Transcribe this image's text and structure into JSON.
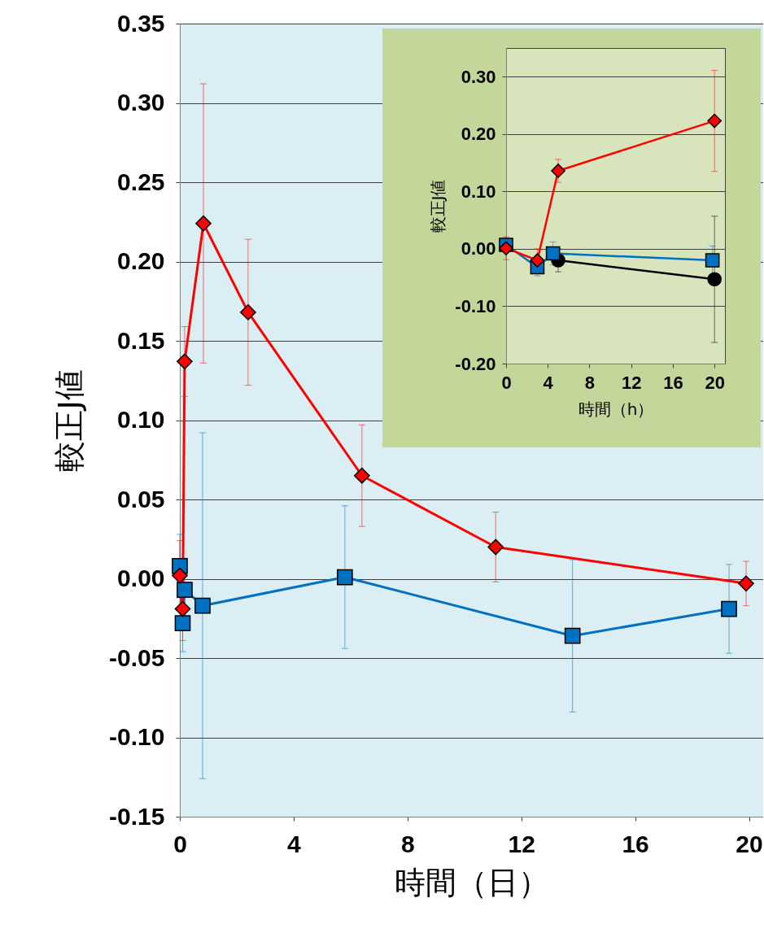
{
  "chart_data": [
    {
      "type": "line",
      "xlabel": "時間（日）",
      "ylabel": "較正J値",
      "grid": "y",
      "xlim": [
        0,
        20.5
      ],
      "xticks": [
        0,
        4,
        8,
        12,
        16,
        20
      ],
      "ylim": [
        -0.15,
        0.35
      ],
      "yticks": [
        {
          "value": -0.15,
          "label": "-0.15"
        },
        {
          "value": -0.1,
          "label": "-0.10"
        },
        {
          "value": -0.05,
          "label": "-0.05"
        },
        {
          "value": 0,
          "label": "0.00"
        },
        {
          "value": 0.05,
          "label": "0.05"
        },
        {
          "value": 0.1,
          "label": "0.10"
        },
        {
          "value": 0.15,
          "label": "0.15"
        },
        {
          "value": 0.2,
          "label": "0.20"
        },
        {
          "value": 0.25,
          "label": "0.25"
        },
        {
          "value": 0.3,
          "label": "0.30"
        },
        {
          "value": 0.35,
          "label": "0.35"
        }
      ],
      "series": [
        {
          "color": "#0070c0",
          "marker": "square",
          "x": [
            0,
            0.1,
            0.17,
            0.8,
            5.8,
            13.8,
            19.3
          ],
          "values": [
            0.008,
            -0.028,
            -0.007,
            -0.017,
            0.001,
            -0.036,
            -0.019
          ],
          "errors": [
            0.02,
            0.018,
            0.02,
            0.109,
            0.045,
            0.048,
            0.028
          ]
        },
        {
          "color": "#ff0000",
          "marker": "diamond",
          "x": [
            0,
            0.1,
            0.17,
            0.83,
            2.4,
            6.4,
            11.1,
            19.9
          ],
          "values": [
            0.002,
            -0.019,
            0.137,
            0.224,
            0.168,
            0.065,
            0.02,
            -0.003
          ],
          "errors": [
            0.022,
            0.02,
            0.022,
            0.088,
            0.046,
            0.032,
            0.022,
            0.014
          ]
        }
      ]
    },
    {
      "type": "line",
      "xlabel": "時間（h）",
      "ylabel": "較正J値",
      "grid": "y",
      "xlim": [
        0,
        21
      ],
      "xticks": [
        0,
        4,
        8,
        12,
        16,
        20
      ],
      "ylim": [
        -0.2,
        0.35
      ],
      "yticks": [
        {
          "value": -0.2,
          "label": "-0.20"
        },
        {
          "value": -0.1,
          "label": "-0.10"
        },
        {
          "value": 0,
          "label": "0.00"
        },
        {
          "value": 0.1,
          "label": "0.10"
        },
        {
          "value": 0.2,
          "label": "0.20"
        },
        {
          "value": 0.3,
          "label": "0.30"
        }
      ],
      "series": [
        {
          "color": "#000000",
          "marker": "circle",
          "x": [
            5,
            20
          ],
          "values": [
            -0.02,
            -0.053
          ],
          "errors": [
            0.02,
            0.11
          ]
        },
        {
          "color": "#0070c0",
          "marker": "square",
          "x": [
            0,
            3,
            4.5,
            19.8
          ],
          "values": [
            0.007,
            -0.032,
            -0.008,
            -0.02
          ],
          "errors": [
            null,
            0.015,
            0.02,
            0.025
          ]
        },
        {
          "color": "#ff0000",
          "marker": "diamond",
          "x": [
            0,
            3,
            5,
            20
          ],
          "values": [
            0.001,
            -0.02,
            0.136,
            0.223
          ],
          "errors": [
            0.02,
            0.02,
            0.02,
            0.088
          ]
        }
      ]
    }
  ]
}
